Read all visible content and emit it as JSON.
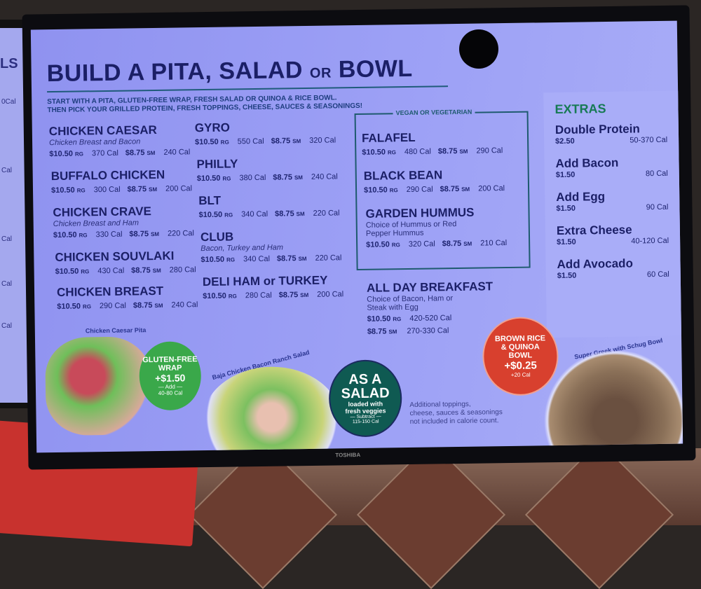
{
  "left_screen_fragments": [
    "LS",
    "0Cal",
    "Cal",
    "Cal",
    "Cal",
    "Cal"
  ],
  "menu": {
    "title_main": "BUILD A PITA, SALAD",
    "title_or": "OR",
    "title_end": "BOWL",
    "subtitle_1": "START WITH A PITA, GLUTEN-FREE WRAP, FRESH SALAD OR QUINOA & RICE BOWL.",
    "subtitle_2": "THEN PICK YOUR GRILLED PROTEIN, FRESH TOPPINGS, CHEESE, SAUCES & SEASONINGS!",
    "items": [
      {
        "name": "CHICKEN CAESAR",
        "desc": "Chicken Breast and Bacon",
        "rg_price": "$10.50",
        "rg_cal": "370 Cal",
        "sm_price": "$8.75",
        "sm_cal": "240 Cal"
      },
      {
        "name": "BUFFALO CHICKEN",
        "desc": "",
        "rg_price": "$10.50",
        "rg_cal": "300 Cal",
        "sm_price": "$8.75",
        "sm_cal": "200 Cal"
      },
      {
        "name": "CHICKEN CRAVE",
        "desc": "Chicken Breast and Ham",
        "rg_price": "$10.50",
        "rg_cal": "330 Cal",
        "sm_price": "$8.75",
        "sm_cal": "220 Cal"
      },
      {
        "name": "CHICKEN SOUVLAKI",
        "desc": "",
        "rg_price": "$10.50",
        "rg_cal": "430 Cal",
        "sm_price": "$8.75",
        "sm_cal": "280 Cal"
      },
      {
        "name": "CHICKEN BREAST",
        "desc": "",
        "rg_price": "$10.50",
        "rg_cal": "290 Cal",
        "sm_price": "$8.75",
        "sm_cal": "240 Cal"
      },
      {
        "name": "GYRO",
        "desc": "",
        "rg_price": "$10.50",
        "rg_cal": "550 Cal",
        "sm_price": "$8.75",
        "sm_cal": "320 Cal"
      },
      {
        "name": "PHILLY",
        "desc": "",
        "rg_price": "$10.50",
        "rg_cal": "380 Cal",
        "sm_price": "$8.75",
        "sm_cal": "240 Cal"
      },
      {
        "name": "BLT",
        "desc": "",
        "rg_price": "$10.50",
        "rg_cal": "340 Cal",
        "sm_price": "$8.75",
        "sm_cal": "220 Cal"
      },
      {
        "name": "CLUB",
        "desc": "Bacon, Turkey and Ham",
        "rg_price": "$10.50",
        "rg_cal": "340 Cal",
        "sm_price": "$8.75",
        "sm_cal": "220 Cal"
      },
      {
        "name": "DELI HAM or TURKEY",
        "desc": "",
        "rg_price": "$10.50",
        "rg_cal": "280 Cal",
        "sm_price": "$8.75",
        "sm_cal": "200 Cal"
      },
      {
        "name": "FALAFEL",
        "desc": "",
        "rg_price": "$10.50",
        "rg_cal": "480 Cal",
        "sm_price": "$8.75",
        "sm_cal": "290 Cal"
      },
      {
        "name": "BLACK BEAN",
        "desc": "",
        "rg_price": "$10.50",
        "rg_cal": "290 Cal",
        "sm_price": "$8.75",
        "sm_cal": "200 Cal"
      },
      {
        "name": "GARDEN HUMMUS",
        "desc": "Choice of Hummus or Red Pepper Hummus",
        "rg_price": "$10.50",
        "rg_cal": "320 Cal",
        "sm_price": "$8.75",
        "sm_cal": "210 Cal"
      }
    ],
    "size_rg": "RG",
    "size_sm": "SM",
    "vegan_label": "VEGAN OR VEGETARIAN",
    "breakfast": {
      "name": "ALL DAY BREAKFAST",
      "desc_1": "Choice of Bacon, Ham or",
      "desc_2": "Steak with Egg",
      "rg_price": "$10.50",
      "rg_cal": "420-520 Cal",
      "sm_price": "$8.75",
      "sm_cal": "270-330 Cal"
    },
    "extras": {
      "heading": "EXTRAS",
      "items": [
        {
          "name": "Double Protein",
          "price": "$2.50",
          "cal": "50-370 Cal"
        },
        {
          "name": "Add Bacon",
          "price": "$1.50",
          "cal": "80 Cal"
        },
        {
          "name": "Add Egg",
          "price": "$1.50",
          "cal": "90 Cal"
        },
        {
          "name": "Extra Cheese",
          "price": "$1.50",
          "cal": "40-120 Cal"
        },
        {
          "name": "Add Avocado",
          "price": "$1.50",
          "cal": "60 Cal"
        }
      ]
    },
    "gluten_free": {
      "line1": "GLUTEN-FREE",
      "line2": "WRAP",
      "price": "+$1.50",
      "note1": "— Add —",
      "note2": "40-80 Cal",
      "color": "#3aa84a"
    },
    "as_salad": {
      "line1": "AS A",
      "line2": "SALAD",
      "line3": "loaded with",
      "line4": "fresh veggies",
      "note1": "— Subtract —",
      "note2": "115-150 Cal",
      "color": "#0f5a52"
    },
    "brown_rice": {
      "line1": "BROWN RICE",
      "line2": "& QUINOA",
      "line3": "BOWL",
      "price": "+$0.25",
      "note": "+20 Cal",
      "color": "#d8402e"
    },
    "captions": {
      "pita": "Chicken Caesar Pita",
      "salad": "Baja Chicken Bacon Ranch Salad",
      "bowl": "Super Greek with Schug Bowl"
    },
    "footnote_1": "Additional toppings,",
    "footnote_2": "cheese, sauces & seasonings",
    "footnote_3": "not included in calorie count."
  },
  "tv_brand": "TOSHIBA"
}
